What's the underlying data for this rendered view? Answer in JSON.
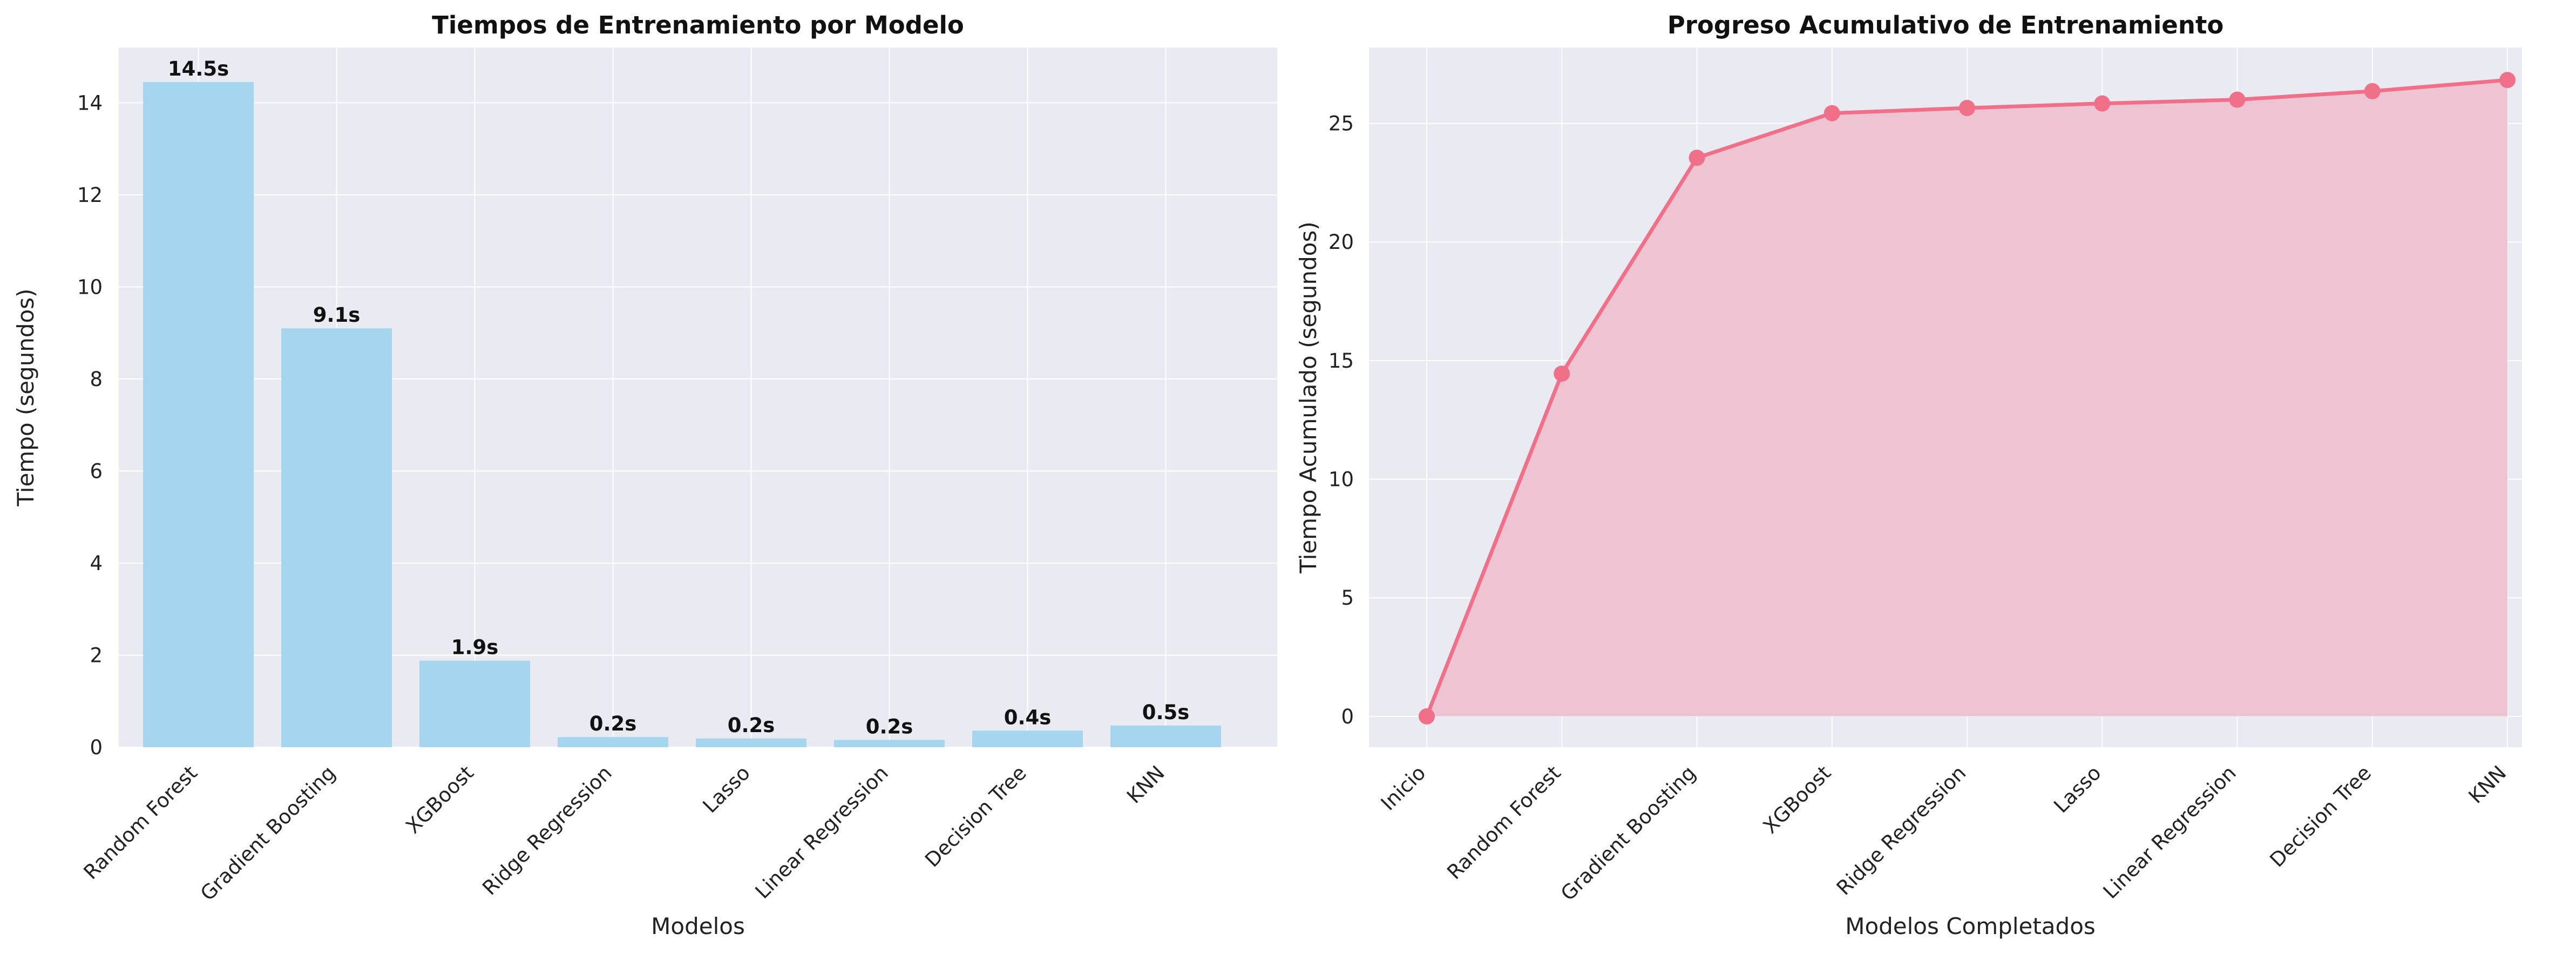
{
  "chart_data": [
    {
      "type": "bar",
      "title": "Tiempos de Entrenamiento por Modelo",
      "xlabel": "Modelos",
      "ylabel": "Tiempo (segundos)",
      "categories": [
        "Random Forest",
        "Gradient Boosting",
        "XGBoost",
        "Ridge Regression",
        "Lasso",
        "Linear Regression",
        "Decision Tree",
        "KNN"
      ],
      "values": [
        14.45,
        9.1,
        1.88,
        0.22,
        0.19,
        0.16,
        0.36,
        0.47
      ],
      "value_labels": [
        "14.5s",
        "9.1s",
        "1.9s",
        "0.2s",
        "0.2s",
        "0.2s",
        "0.4s",
        "0.5s"
      ],
      "yticks": [
        "0",
        "2",
        "4",
        "6",
        "8",
        "10",
        "12",
        "14"
      ],
      "ylim": [
        0,
        15.2
      ],
      "grid": true,
      "bar_color": "#a6d6ee"
    },
    {
      "type": "area",
      "title": "Progreso Acumulativo de Entrenamiento",
      "xlabel": "Modelos Completados",
      "ylabel": "Tiempo Acumulado (segundos)",
      "categories": [
        "Inicio",
        "Random Forest",
        "Gradient Boosting",
        "XGBoost",
        "Ridge Regression",
        "Lasso",
        "Linear Regression",
        "Decision Tree",
        "KNN"
      ],
      "values": [
        0,
        14.45,
        23.55,
        25.43,
        25.65,
        25.84,
        26.0,
        26.36,
        26.83
      ],
      "yticks": [
        "0",
        "5",
        "10",
        "15",
        "20",
        "25"
      ],
      "ylim": [
        -1.3,
        28.2
      ],
      "grid": true,
      "line_color": "#f07089",
      "fill_color": "#eec3d2"
    }
  ]
}
